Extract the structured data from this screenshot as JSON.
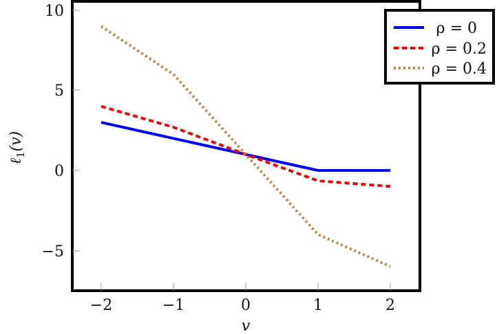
{
  "chart_data": {
    "type": "line",
    "title": "",
    "xlabel": "v",
    "ylabel": "ℓ1(v)",
    "x": [
      -2,
      -1,
      0,
      1,
      2
    ],
    "xlim": [
      -2.4,
      2.4
    ],
    "ylim": [
      -7.5,
      10.5
    ],
    "xticks": [
      -2,
      -1,
      0,
      1,
      2
    ],
    "xtick_labels": [
      "−2",
      "−1",
      "0",
      "1",
      "2"
    ],
    "yticks": [
      -5,
      0,
      5,
      10
    ],
    "ytick_labels": [
      "−5",
      "0",
      "5",
      "10"
    ],
    "grid": false,
    "legend_position": "upper right (outside)",
    "series": [
      {
        "name": "ρ = 0",
        "values": [
          3,
          2,
          1,
          0,
          0
        ],
        "color": "#0000ee",
        "style": "solid"
      },
      {
        "name": "ρ = 0.2",
        "values": [
          4,
          2.7,
          1,
          -0.65,
          -1
        ],
        "color": "#ee0000",
        "style": "dashed"
      },
      {
        "name": "ρ = 0.4",
        "values": [
          9,
          6,
          1,
          -4,
          -6
        ],
        "color": "#bf8650",
        "style": "dotted"
      }
    ]
  },
  "legend": {
    "items": [
      "ρ = 0",
      "ρ = 0.2",
      "ρ = 0.4"
    ]
  },
  "axes": {
    "xlabel": "v",
    "ylabel_main": "ℓ",
    "ylabel_sub": "1",
    "ylabel_rest": "(v)"
  }
}
